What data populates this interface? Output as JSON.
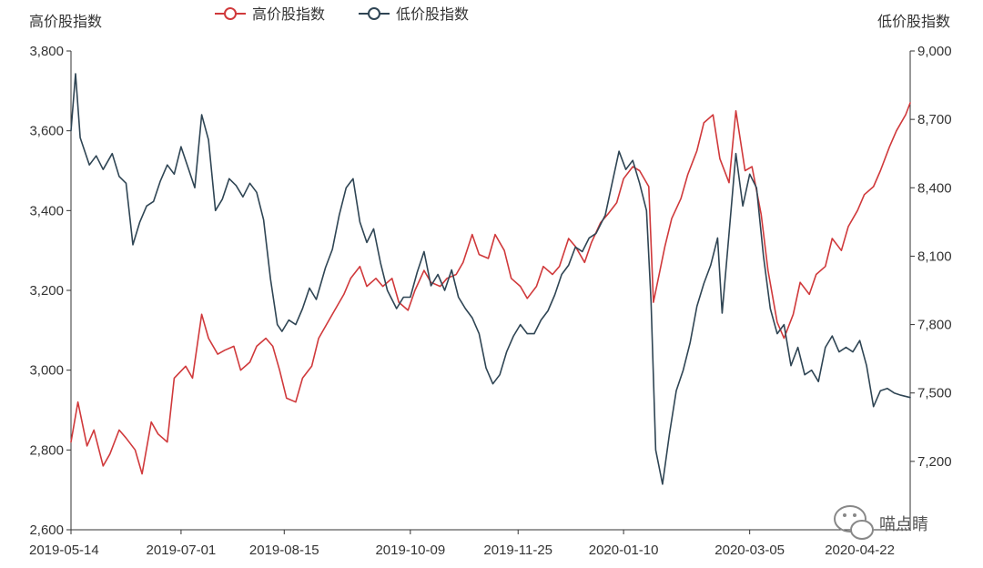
{
  "chart_data": {
    "type": "line",
    "y_left_label": "高价股指数",
    "y_right_label": "低价股指数",
    "y_left_range": [
      2600,
      3800
    ],
    "y_left_ticks": [
      "2,600",
      "2,800",
      "3,000",
      "3,200",
      "3,400",
      "3,600",
      "3,800"
    ],
    "y_right_range": [
      6900,
      9000
    ],
    "y_right_ticks": [
      "7,200",
      "7,500",
      "7,800",
      "8,100",
      "8,400",
      "8,700",
      "9,000"
    ],
    "x_ticks": [
      "2019-05-14",
      "2019-07-01",
      "2019-08-15",
      "2019-10-09",
      "2019-11-25",
      "2020-01-10",
      "2020-03-05",
      "2020-04-22"
    ],
    "grid": false,
    "legend_position": "top",
    "series": [
      {
        "name": "高价股指数",
        "axis": "left",
        "color": "#d0393b",
        "points": [
          [
            "2019-05-14",
            2820
          ],
          [
            "2019-05-17",
            2920
          ],
          [
            "2019-05-21",
            2810
          ],
          [
            "2019-05-24",
            2850
          ],
          [
            "2019-05-28",
            2760
          ],
          [
            "2019-05-31",
            2790
          ],
          [
            "2019-06-04",
            2850
          ],
          [
            "2019-06-07",
            2830
          ],
          [
            "2019-06-11",
            2800
          ],
          [
            "2019-06-14",
            2740
          ],
          [
            "2019-06-18",
            2870
          ],
          [
            "2019-06-21",
            2840
          ],
          [
            "2019-06-25",
            2820
          ],
          [
            "2019-06-28",
            2980
          ],
          [
            "2019-07-03",
            3010
          ],
          [
            "2019-07-06",
            2980
          ],
          [
            "2019-07-10",
            3140
          ],
          [
            "2019-07-13",
            3080
          ],
          [
            "2019-07-17",
            3040
          ],
          [
            "2019-07-20",
            3050
          ],
          [
            "2019-07-24",
            3060
          ],
          [
            "2019-07-27",
            3000
          ],
          [
            "2019-07-31",
            3020
          ],
          [
            "2019-08-03",
            3060
          ],
          [
            "2019-08-07",
            3080
          ],
          [
            "2019-08-10",
            3060
          ],
          [
            "2019-08-13",
            3000
          ],
          [
            "2019-08-16",
            2930
          ],
          [
            "2019-08-20",
            2920
          ],
          [
            "2019-08-23",
            2980
          ],
          [
            "2019-08-27",
            3010
          ],
          [
            "2019-08-30",
            3080
          ],
          [
            "2019-09-03",
            3120
          ],
          [
            "2019-09-06",
            3150
          ],
          [
            "2019-09-10",
            3190
          ],
          [
            "2019-09-13",
            3230
          ],
          [
            "2019-09-17",
            3260
          ],
          [
            "2019-09-20",
            3210
          ],
          [
            "2019-09-24",
            3230
          ],
          [
            "2019-09-27",
            3210
          ],
          [
            "2019-10-01",
            3230
          ],
          [
            "2019-10-04",
            3170
          ],
          [
            "2019-10-08",
            3150
          ],
          [
            "2019-10-11",
            3200
          ],
          [
            "2019-10-15",
            3250
          ],
          [
            "2019-10-18",
            3220
          ],
          [
            "2019-10-22",
            3210
          ],
          [
            "2019-10-25",
            3230
          ],
          [
            "2019-10-29",
            3240
          ],
          [
            "2019-11-01",
            3270
          ],
          [
            "2019-11-05",
            3340
          ],
          [
            "2019-11-08",
            3290
          ],
          [
            "2019-11-12",
            3280
          ],
          [
            "2019-11-15",
            3340
          ],
          [
            "2019-11-19",
            3300
          ],
          [
            "2019-11-22",
            3230
          ],
          [
            "2019-11-26",
            3210
          ],
          [
            "2019-11-29",
            3180
          ],
          [
            "2019-12-03",
            3210
          ],
          [
            "2019-12-06",
            3260
          ],
          [
            "2019-12-10",
            3240
          ],
          [
            "2019-12-13",
            3260
          ],
          [
            "2019-12-17",
            3330
          ],
          [
            "2019-12-20",
            3310
          ],
          [
            "2019-12-24",
            3270
          ],
          [
            "2019-12-27",
            3320
          ],
          [
            "2019-12-31",
            3370
          ],
          [
            "2020-01-03",
            3390
          ],
          [
            "2020-01-07",
            3420
          ],
          [
            "2020-01-10",
            3480
          ],
          [
            "2020-01-14",
            3510
          ],
          [
            "2020-01-17",
            3500
          ],
          [
            "2020-01-21",
            3460
          ],
          [
            "2020-01-23",
            3170
          ],
          [
            "2020-01-28",
            3310
          ],
          [
            "2020-01-31",
            3380
          ],
          [
            "2020-02-04",
            3430
          ],
          [
            "2020-02-07",
            3490
          ],
          [
            "2020-02-11",
            3550
          ],
          [
            "2020-02-14",
            3620
          ],
          [
            "2020-02-18",
            3640
          ],
          [
            "2020-02-21",
            3530
          ],
          [
            "2020-02-25",
            3470
          ],
          [
            "2020-02-28",
            3650
          ],
          [
            "2020-03-03",
            3500
          ],
          [
            "2020-03-06",
            3510
          ],
          [
            "2020-03-10",
            3390
          ],
          [
            "2020-03-13",
            3250
          ],
          [
            "2020-03-17",
            3120
          ],
          [
            "2020-03-20",
            3080
          ],
          [
            "2020-03-24",
            3140
          ],
          [
            "2020-03-27",
            3220
          ],
          [
            "2020-03-31",
            3190
          ],
          [
            "2020-04-03",
            3240
          ],
          [
            "2020-04-07",
            3260
          ],
          [
            "2020-04-10",
            3330
          ],
          [
            "2020-04-14",
            3300
          ],
          [
            "2020-04-17",
            3360
          ],
          [
            "2020-04-21",
            3400
          ],
          [
            "2020-04-24",
            3440
          ],
          [
            "2020-04-28",
            3460
          ],
          [
            "2020-05-01",
            3500
          ],
          [
            "2020-05-05",
            3560
          ],
          [
            "2020-05-08",
            3600
          ],
          [
            "2020-05-12",
            3640
          ],
          [
            "2020-05-14",
            3670
          ]
        ]
      },
      {
        "name": "低价股指数",
        "axis": "right",
        "color": "#2f4554",
        "points": [
          [
            "2019-05-14",
            8650
          ],
          [
            "2019-05-16",
            8900
          ],
          [
            "2019-05-18",
            8620
          ],
          [
            "2019-05-22",
            8500
          ],
          [
            "2019-05-25",
            8540
          ],
          [
            "2019-05-28",
            8480
          ],
          [
            "2019-06-01",
            8550
          ],
          [
            "2019-06-04",
            8450
          ],
          [
            "2019-06-07",
            8420
          ],
          [
            "2019-06-10",
            8150
          ],
          [
            "2019-06-13",
            8250
          ],
          [
            "2019-06-16",
            8320
          ],
          [
            "2019-06-19",
            8340
          ],
          [
            "2019-06-22",
            8430
          ],
          [
            "2019-06-25",
            8500
          ],
          [
            "2019-06-28",
            8460
          ],
          [
            "2019-07-01",
            8580
          ],
          [
            "2019-07-04",
            8490
          ],
          [
            "2019-07-07",
            8400
          ],
          [
            "2019-07-10",
            8720
          ],
          [
            "2019-07-13",
            8610
          ],
          [
            "2019-07-16",
            8300
          ],
          [
            "2019-07-19",
            8350
          ],
          [
            "2019-07-22",
            8440
          ],
          [
            "2019-07-25",
            8410
          ],
          [
            "2019-07-28",
            8360
          ],
          [
            "2019-07-31",
            8420
          ],
          [
            "2019-08-03",
            8380
          ],
          [
            "2019-08-06",
            8260
          ],
          [
            "2019-08-09",
            8000
          ],
          [
            "2019-08-12",
            7800
          ],
          [
            "2019-08-14",
            7770
          ],
          [
            "2019-08-17",
            7820
          ],
          [
            "2019-08-20",
            7800
          ],
          [
            "2019-08-23",
            7870
          ],
          [
            "2019-08-26",
            7960
          ],
          [
            "2019-08-29",
            7910
          ],
          [
            "2019-09-02",
            8050
          ],
          [
            "2019-09-05",
            8130
          ],
          [
            "2019-09-08",
            8280
          ],
          [
            "2019-09-11",
            8400
          ],
          [
            "2019-09-14",
            8440
          ],
          [
            "2019-09-17",
            8250
          ],
          [
            "2019-09-20",
            8160
          ],
          [
            "2019-09-23",
            8220
          ],
          [
            "2019-09-26",
            8070
          ],
          [
            "2019-09-29",
            7950
          ],
          [
            "2019-10-03",
            7870
          ],
          [
            "2019-10-06",
            7920
          ],
          [
            "2019-10-09",
            7920
          ],
          [
            "2019-10-12",
            8030
          ],
          [
            "2019-10-15",
            8120
          ],
          [
            "2019-10-18",
            7970
          ],
          [
            "2019-10-21",
            8020
          ],
          [
            "2019-10-24",
            7950
          ],
          [
            "2019-10-27",
            8040
          ],
          [
            "2019-10-30",
            7920
          ],
          [
            "2019-11-02",
            7870
          ],
          [
            "2019-11-05",
            7830
          ],
          [
            "2019-11-08",
            7760
          ],
          [
            "2019-11-11",
            7610
          ],
          [
            "2019-11-14",
            7540
          ],
          [
            "2019-11-17",
            7580
          ],
          [
            "2019-11-20",
            7680
          ],
          [
            "2019-11-23",
            7750
          ],
          [
            "2019-11-26",
            7800
          ],
          [
            "2019-11-29",
            7760
          ],
          [
            "2019-12-02",
            7760
          ],
          [
            "2019-12-05",
            7820
          ],
          [
            "2019-12-08",
            7860
          ],
          [
            "2019-12-11",
            7930
          ],
          [
            "2019-12-14",
            8020
          ],
          [
            "2019-12-17",
            8060
          ],
          [
            "2019-12-20",
            8140
          ],
          [
            "2019-12-23",
            8120
          ],
          [
            "2019-12-26",
            8180
          ],
          [
            "2019-12-29",
            8200
          ],
          [
            "2020-01-02",
            8280
          ],
          [
            "2020-01-05",
            8420
          ],
          [
            "2020-01-08",
            8560
          ],
          [
            "2020-01-11",
            8480
          ],
          [
            "2020-01-14",
            8520
          ],
          [
            "2020-01-17",
            8420
          ],
          [
            "2020-01-20",
            8300
          ],
          [
            "2020-01-22",
            7900
          ],
          [
            "2020-01-24",
            7250
          ],
          [
            "2020-01-27",
            7100
          ],
          [
            "2020-01-30",
            7320
          ],
          [
            "2020-02-02",
            7510
          ],
          [
            "2020-02-05",
            7600
          ],
          [
            "2020-02-08",
            7720
          ],
          [
            "2020-02-11",
            7880
          ],
          [
            "2020-02-14",
            7980
          ],
          [
            "2020-02-17",
            8060
          ],
          [
            "2020-02-20",
            8180
          ],
          [
            "2020-02-22",
            7850
          ],
          [
            "2020-02-25",
            8200
          ],
          [
            "2020-02-28",
            8550
          ],
          [
            "2020-03-02",
            8320
          ],
          [
            "2020-03-05",
            8460
          ],
          [
            "2020-03-08",
            8400
          ],
          [
            "2020-03-11",
            8100
          ],
          [
            "2020-03-14",
            7870
          ],
          [
            "2020-03-17",
            7760
          ],
          [
            "2020-03-20",
            7800
          ],
          [
            "2020-03-23",
            7620
          ],
          [
            "2020-03-26",
            7700
          ],
          [
            "2020-03-29",
            7580
          ],
          [
            "2020-04-01",
            7600
          ],
          [
            "2020-04-04",
            7550
          ],
          [
            "2020-04-07",
            7700
          ],
          [
            "2020-04-10",
            7750
          ],
          [
            "2020-04-13",
            7680
          ],
          [
            "2020-04-16",
            7700
          ],
          [
            "2020-04-19",
            7680
          ],
          [
            "2020-04-22",
            7730
          ],
          [
            "2020-04-25",
            7620
          ],
          [
            "2020-04-28",
            7440
          ],
          [
            "2020-05-01",
            7510
          ],
          [
            "2020-05-04",
            7520
          ],
          [
            "2020-05-07",
            7500
          ],
          [
            "2020-05-10",
            7490
          ],
          [
            "2020-05-14",
            7480
          ]
        ]
      }
    ]
  },
  "watermark": {
    "text": "喵点睛",
    "icon": "wechat-icon"
  }
}
